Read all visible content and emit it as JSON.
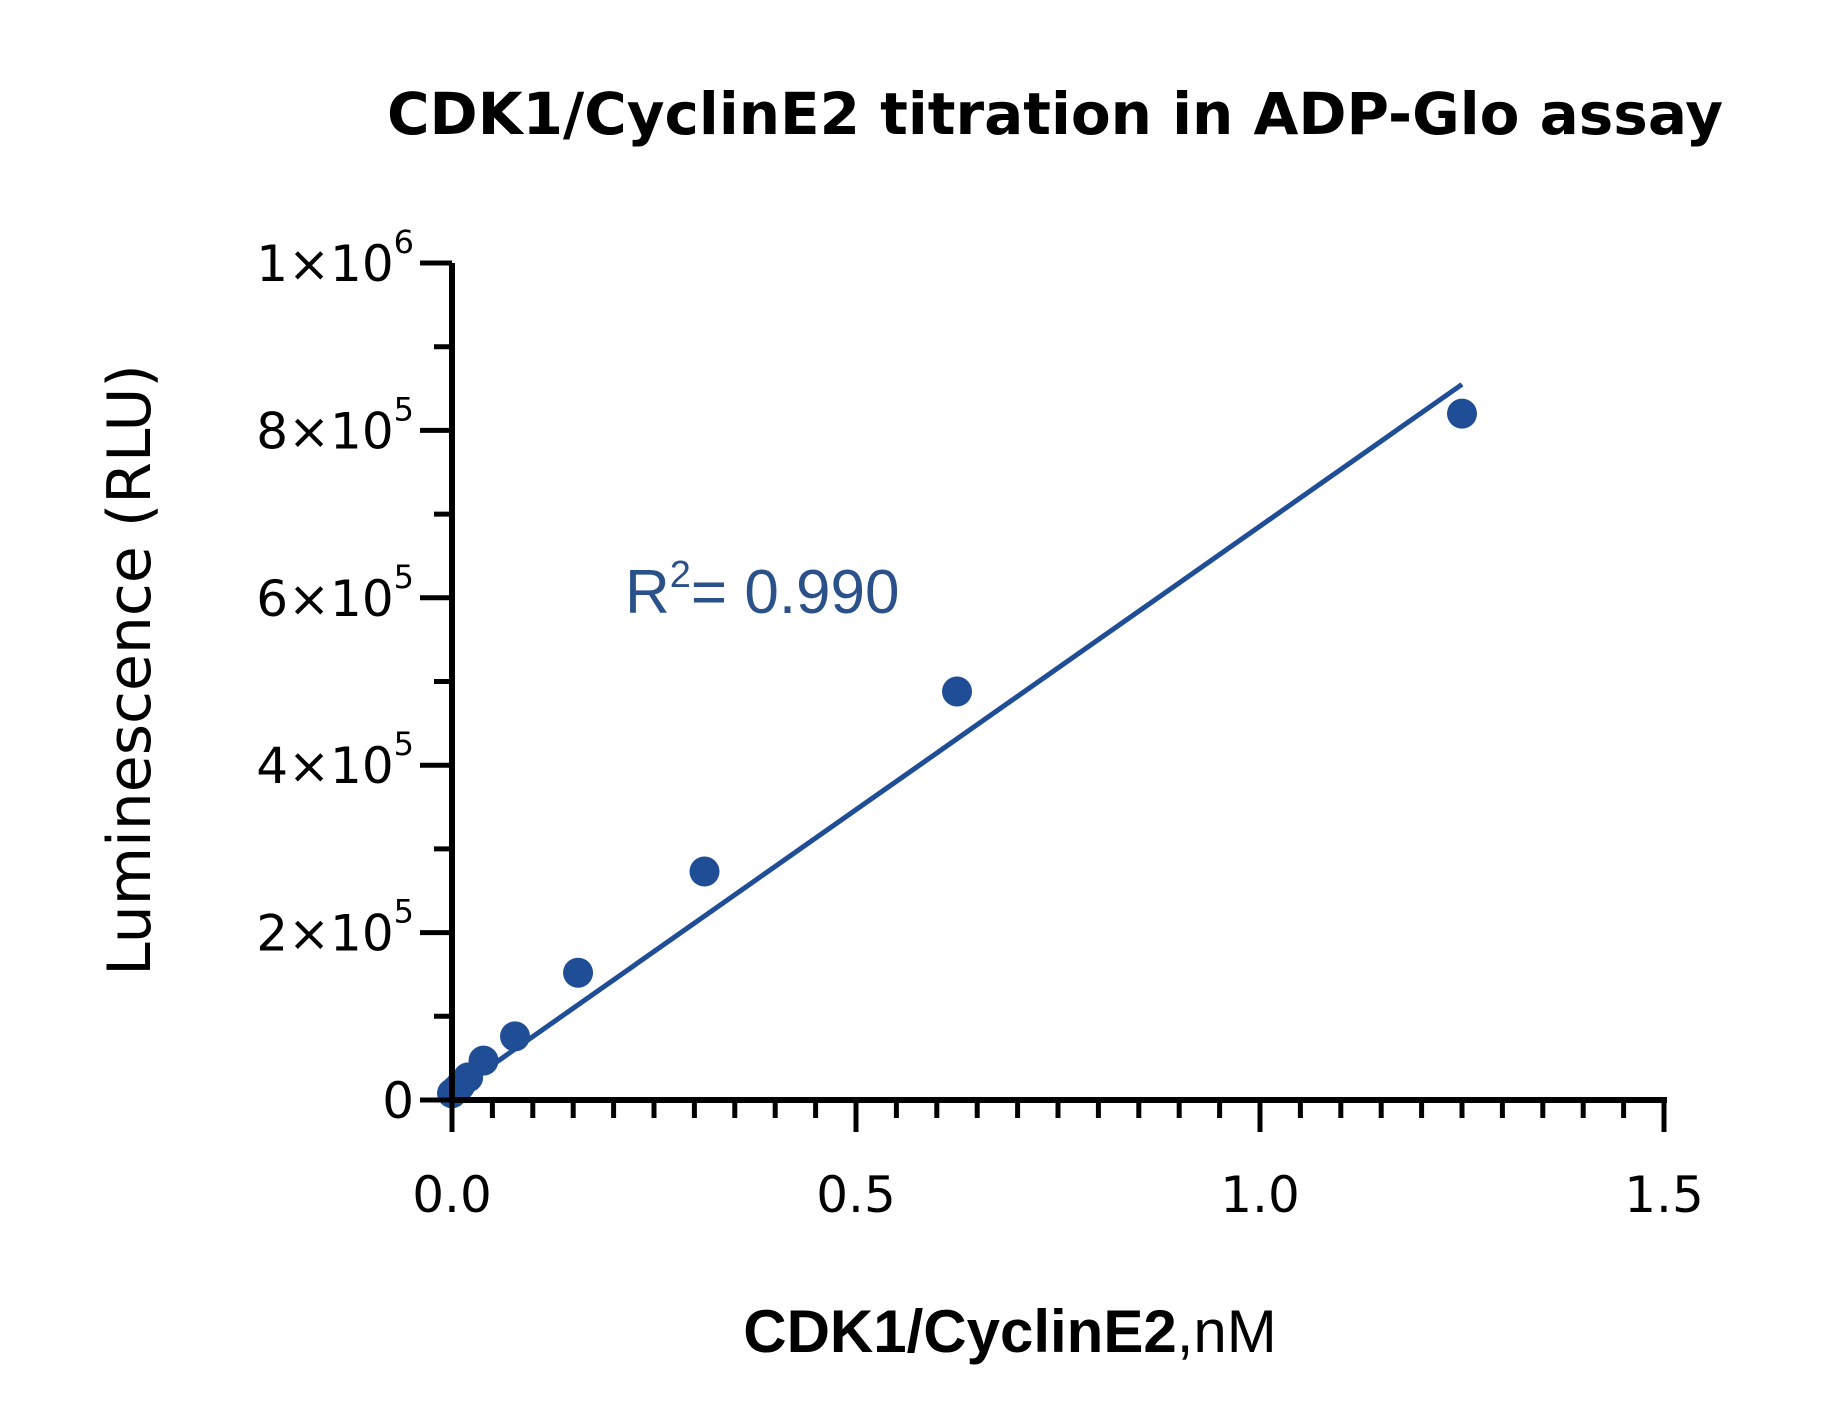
{
  "chart_data": {
    "type": "scatter",
    "title": "CDK1/CyclinE2 titration in ADP-Glo assay",
    "xlabel": "CDK1/CyclinE2",
    "xlabel_unit": ",nM",
    "ylabel": "Luminescence (RLU)",
    "xlim": [
      0,
      1.5
    ],
    "ylim": [
      0,
      1000000
    ],
    "x_ticks": [
      {
        "value": 0,
        "label": "0.0"
      },
      {
        "value": 0.5,
        "label": "0.5"
      },
      {
        "value": 1.0,
        "label": "1.0"
      },
      {
        "value": 1.5,
        "label": "1.5"
      }
    ],
    "y_ticks": [
      {
        "value": 0,
        "label": "0",
        "mantissa": "",
        "exponent": ""
      },
      {
        "value": 200000,
        "label": "2×10",
        "mantissa": "2×10",
        "exponent": "5"
      },
      {
        "value": 400000,
        "label": "4×10",
        "mantissa": "4×10",
        "exponent": "5"
      },
      {
        "value": 600000,
        "label": "6×10",
        "mantissa": "6×10",
        "exponent": "5"
      },
      {
        "value": 800000,
        "label": "8×10",
        "mantissa": "8×10",
        "exponent": "5"
      },
      {
        "value": 1000000,
        "label": "1×10",
        "mantissa": "1×10",
        "exponent": "6"
      }
    ],
    "x_minor_step": 0.05,
    "y_minor_step": 100000,
    "grid": false,
    "series": [
      {
        "name": "CDK1/CyclinE2",
        "color": "#1f4e96",
        "points": [
          {
            "x": 0.0,
            "y": 8000
          },
          {
            "x": 0.005,
            "y": 12000
          },
          {
            "x": 0.01,
            "y": 17000
          },
          {
            "x": 0.02,
            "y": 27000
          },
          {
            "x": 0.039,
            "y": 47000
          },
          {
            "x": 0.078,
            "y": 76000
          },
          {
            "x": 0.156,
            "y": 152000
          },
          {
            "x": 0.3125,
            "y": 273000
          },
          {
            "x": 0.625,
            "y": 488000
          },
          {
            "x": 1.25,
            "y": 820000
          }
        ]
      }
    ],
    "fit_line": {
      "color": "#1f4e96",
      "x_start": 0.0,
      "x_end": 1.25,
      "y_start": 8000,
      "y_end": 855000
    },
    "annotation": {
      "base": "R",
      "superscript": "2",
      "rest": "= 0.990",
      "color": "#2a5189"
    }
  }
}
